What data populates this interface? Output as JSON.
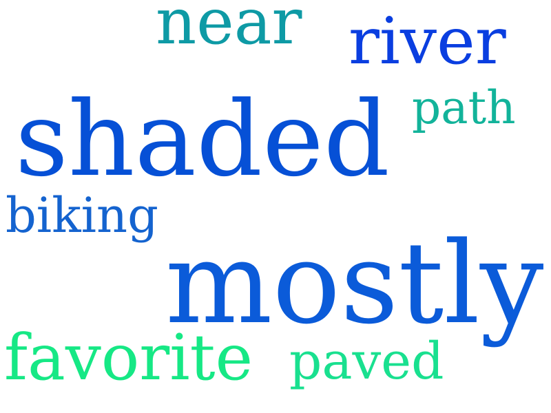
{
  "words": [
    {
      "key": "near",
      "text": "near",
      "color": "#0e9aa5"
    },
    {
      "key": "river",
      "text": "river",
      "color": "#0a3ee0"
    },
    {
      "key": "path",
      "text": "path",
      "color": "#12b39a"
    },
    {
      "key": "shaded",
      "text": "shaded",
      "color": "#0650d6"
    },
    {
      "key": "biking",
      "text": "biking",
      "color": "#1463cf"
    },
    {
      "key": "mostly",
      "text": "mostly",
      "color": "#0b5bd9"
    },
    {
      "key": "favorite",
      "text": "favorite",
      "color": "#16e885"
    },
    {
      "key": "paved",
      "text": "paved",
      "color": "#19e08f"
    }
  ]
}
